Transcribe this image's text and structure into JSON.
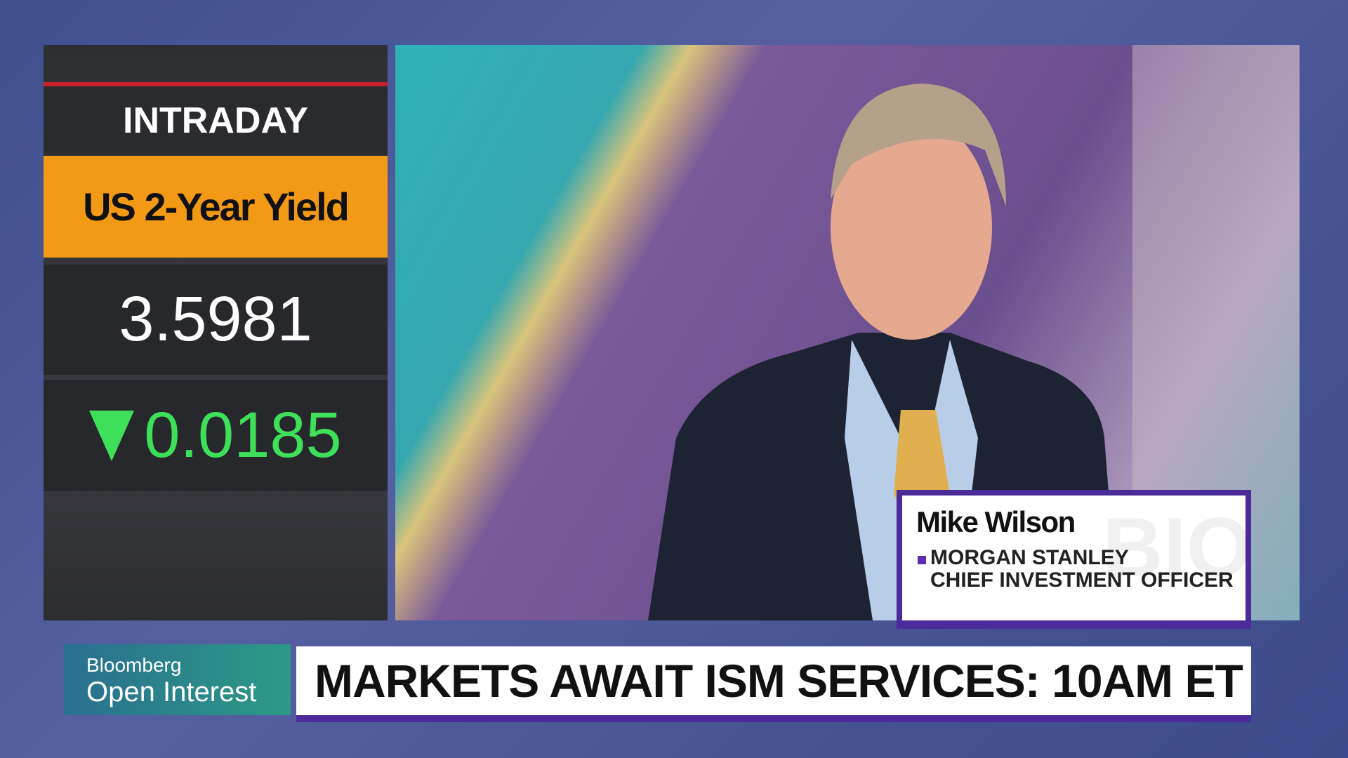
{
  "ticker": {
    "label": "INTRADAY",
    "name": "US 2-Year Yield",
    "value": "3.5981",
    "change": "0.0185"
  },
  "guest": {
    "name": "Mike Wilson",
    "organization": "MORGAN STANLEY",
    "role": "CHIEF INVESTMENT OFFICER",
    "watermark": "BIO"
  },
  "show": {
    "brand": "Bloomberg",
    "title": "Open Interest"
  },
  "headline": "MARKETS AWAIT ISM SERVICES: 10AM ET"
}
